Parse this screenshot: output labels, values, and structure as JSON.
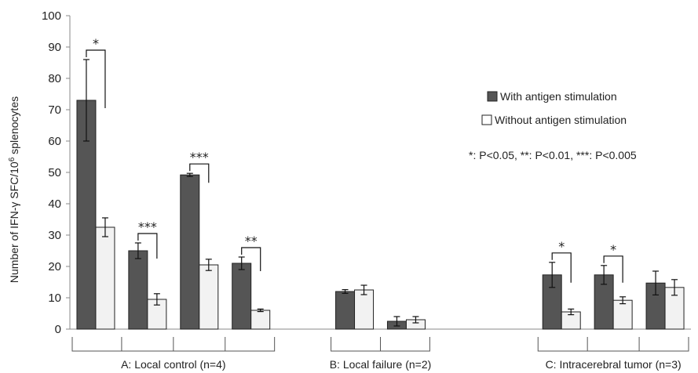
{
  "chart_data": {
    "type": "bar",
    "ylabel_prefix": "Number of IFN-γ SFC/10",
    "ylabel_sup": "6",
    "ylabel_suffix": " splenocytes",
    "ylim": [
      0,
      100
    ],
    "yticks": [
      0,
      10,
      20,
      30,
      40,
      50,
      60,
      70,
      80,
      90,
      100
    ],
    "grid": false,
    "legend_position": "right",
    "colors": {
      "with": "#555555",
      "without": "#f2f2f2",
      "edge": "#222222"
    },
    "series": [
      {
        "name": "With antigen stimulation",
        "key": "with"
      },
      {
        "name": "Without antigen stimulation",
        "key": "without"
      }
    ],
    "groups": [
      {
        "label": "A: Local control (n=4)",
        "bars": [
          0,
          1,
          2,
          3
        ]
      },
      {
        "label": "B: Local failure (n=2)",
        "bars": [
          4,
          5
        ]
      },
      {
        "label": "C: Intracerebral tumor (n=3)",
        "bars": [
          6,
          7,
          8
        ]
      }
    ],
    "samples": [
      {
        "with": 73,
        "with_err": 13,
        "without": 32.5,
        "without_err": 3,
        "sig": "*"
      },
      {
        "with": 25,
        "with_err": 2.5,
        "without": 9.5,
        "without_err": 1.8,
        "sig": "***"
      },
      {
        "with": 49.2,
        "with_err": 0.5,
        "without": 20.5,
        "without_err": 1.8,
        "sig": "***"
      },
      {
        "with": 21,
        "with_err": 2,
        "without": 6,
        "without_err": 0.4,
        "sig": "**"
      },
      {
        "with": 12,
        "with_err": 0.6,
        "without": 12.5,
        "without_err": 1.5,
        "sig": ""
      },
      {
        "with": 2.5,
        "with_err": 1.5,
        "without": 3,
        "without_err": 1,
        "sig": ""
      },
      {
        "with": 17.3,
        "with_err": 4,
        "without": 5.5,
        "without_err": 0.9,
        "sig": "*"
      },
      {
        "with": 17.3,
        "with_err": 3,
        "without": 9.2,
        "without_err": 1.1,
        "sig": "*"
      },
      {
        "with": 14.7,
        "with_err": 3.8,
        "without": 13.3,
        "without_err": 2.5,
        "sig": ""
      }
    ],
    "annotation": "*: P<0.05, **: P<0.01, ***: P<0.005"
  }
}
